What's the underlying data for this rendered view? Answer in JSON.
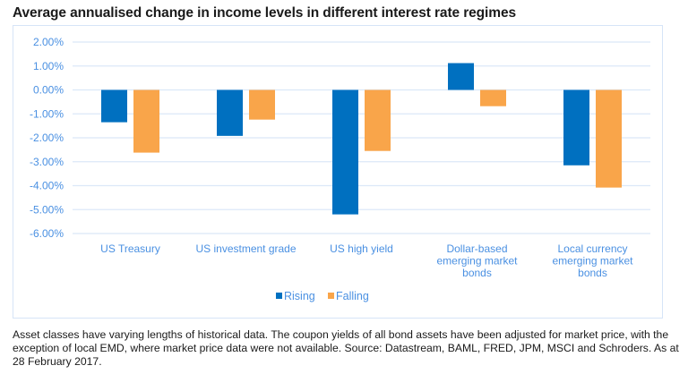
{
  "chart_data": {
    "type": "bar",
    "title": "Average annualised change in income levels in different interest rate regimes",
    "xlabel": "",
    "ylabel": "",
    "ylim": [
      -6,
      2
    ],
    "yticks": [
      2,
      1,
      0,
      -1,
      -2,
      -3,
      -4,
      -5,
      -6
    ],
    "ytick_labels": [
      "2.00%",
      "1.00%",
      "0.00%",
      "-1.00%",
      "-2.00%",
      "-3.00%",
      "-4.00%",
      "-5.00%",
      "-6.00%"
    ],
    "grid": true,
    "legend_position": "bottom-center",
    "categories": [
      [
        "US Treasury"
      ],
      [
        "US investment grade"
      ],
      [
        "US high yield"
      ],
      [
        "Dollar-based",
        "emerging market",
        "bonds"
      ],
      [
        "Local currency",
        "emerging market",
        "bonds"
      ]
    ],
    "series": [
      {
        "name": "Rising",
        "color": "#0070c0",
        "values": [
          -1.35,
          -1.92,
          -5.2,
          1.12,
          -3.15
        ]
      },
      {
        "name": "Falling",
        "color": "#f9a54a",
        "values": [
          -2.62,
          -1.24,
          -2.55,
          -0.68,
          -4.08
        ]
      }
    ]
  },
  "colors": {
    "axis_text": "#4a90e2",
    "gridline": "#dbe8f8",
    "border": "#d6e4f7"
  },
  "footnote": "Asset classes have varying lengths of historical data. The coupon yields of all bond assets have been adjusted for market price, with the exception of local EMD, where market price data were  not available. Source: Datastream, BAML, FRED, JPM, MSCI and Schroders. As at 28 February 2017."
}
